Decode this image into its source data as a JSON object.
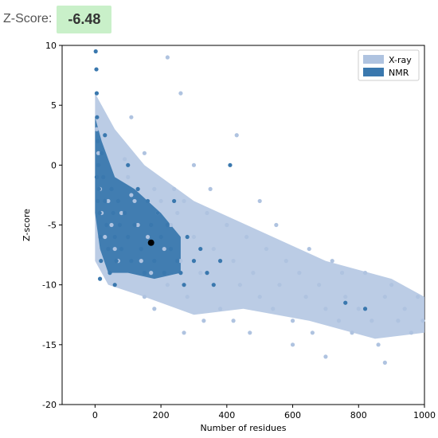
{
  "header": {
    "label": "Z-Score:",
    "value": "-6.48",
    "value_bg": "#c9f0c9"
  },
  "chart_data": {
    "type": "scatter",
    "title": "",
    "xlabel": "Number of residues",
    "ylabel": "Z-score",
    "xlim": [
      -100,
      1000
    ],
    "ylim": [
      -20,
      10
    ],
    "xticks": [
      0,
      200,
      400,
      600,
      800,
      1000
    ],
    "yticks": [
      -20,
      -15,
      -10,
      -5,
      0,
      5,
      10
    ],
    "grid": false,
    "legend_position": "top-right",
    "series": [
      {
        "name": "X-ray",
        "color": "#afc3e0",
        "points": [
          [
            5,
            3
          ],
          [
            10,
            1
          ],
          [
            15,
            -2
          ],
          [
            20,
            -4
          ],
          [
            30,
            -6
          ],
          [
            40,
            -3
          ],
          [
            50,
            -5
          ],
          [
            60,
            -7
          ],
          [
            70,
            -8
          ],
          [
            80,
            -4
          ],
          [
            90,
            0.5
          ],
          [
            100,
            -1
          ],
          [
            110,
            -2.5
          ],
          [
            120,
            -3
          ],
          [
            130,
            -5
          ],
          [
            140,
            -8
          ],
          [
            150,
            1
          ],
          [
            160,
            -6
          ],
          [
            170,
            -9
          ],
          [
            180,
            -2
          ],
          [
            190,
            -4
          ],
          [
            200,
            -3
          ],
          [
            210,
            -7
          ],
          [
            220,
            -10
          ],
          [
            230,
            -5
          ],
          [
            240,
            -2
          ],
          [
            250,
            -4
          ],
          [
            260,
            -8
          ],
          [
            270,
            -3
          ],
          [
            280,
            -11
          ],
          [
            300,
            -6
          ],
          [
            320,
            -9
          ],
          [
            340,
            -4
          ],
          [
            360,
            -7
          ],
          [
            380,
            -12
          ],
          [
            400,
            -5
          ],
          [
            420,
            -8
          ],
          [
            440,
            -10
          ],
          [
            460,
            -6
          ],
          [
            480,
            -9
          ],
          [
            500,
            -11
          ],
          [
            520,
            -7
          ],
          [
            540,
            -12
          ],
          [
            560,
            -10
          ],
          [
            580,
            -8
          ],
          [
            600,
            -13
          ],
          [
            620,
            -9
          ],
          [
            640,
            -11
          ],
          [
            660,
            -14
          ],
          [
            680,
            -10
          ],
          [
            700,
            -12
          ],
          [
            720,
            -8
          ],
          [
            740,
            -13
          ],
          [
            760,
            -11
          ],
          [
            780,
            -14
          ],
          [
            800,
            -12
          ],
          [
            820,
            -9
          ],
          [
            840,
            -13
          ],
          [
            860,
            -15
          ],
          [
            880,
            -11
          ],
          [
            900,
            -10
          ],
          [
            920,
            -13
          ],
          [
            940,
            -12
          ],
          [
            960,
            -14
          ],
          [
            980,
            -11
          ],
          [
            995,
            -13
          ],
          [
            220,
            9
          ],
          [
            430,
            2.5
          ],
          [
            180,
            -12
          ],
          [
            270,
            -14
          ],
          [
            700,
            -16
          ],
          [
            600,
            -15
          ],
          [
            500,
            -3
          ],
          [
            550,
            -5
          ],
          [
            650,
            -7
          ],
          [
            750,
            -9
          ],
          [
            880,
            -16.5
          ],
          [
            420,
            -13
          ],
          [
            350,
            -2
          ],
          [
            300,
            0
          ],
          [
            260,
            6
          ],
          [
            110,
            4
          ],
          [
            150,
            -11
          ],
          [
            330,
            -13
          ],
          [
            470,
            -14
          ]
        ]
      },
      {
        "name": "NMR",
        "color": "#3a78ae",
        "points": [
          [
            2,
            9.5
          ],
          [
            4,
            8
          ],
          [
            5,
            6
          ],
          [
            6,
            4
          ],
          [
            8,
            2
          ],
          [
            10,
            0
          ],
          [
            12,
            -2
          ],
          [
            14,
            -4
          ],
          [
            16,
            -6
          ],
          [
            18,
            -8
          ],
          [
            20,
            1
          ],
          [
            25,
            -1
          ],
          [
            30,
            -3
          ],
          [
            35,
            -5
          ],
          [
            40,
            -7
          ],
          [
            45,
            -9
          ],
          [
            50,
            -2
          ],
          [
            55,
            -4
          ],
          [
            60,
            -6
          ],
          [
            65,
            -8
          ],
          [
            70,
            -3
          ],
          [
            75,
            -5
          ],
          [
            80,
            -7
          ],
          [
            90,
            -4
          ],
          [
            100,
            -6
          ],
          [
            110,
            -8
          ],
          [
            120,
            -5
          ],
          [
            130,
            -2
          ],
          [
            140,
            -7
          ],
          [
            150,
            -9
          ],
          [
            160,
            -3
          ],
          [
            170,
            -5
          ],
          [
            180,
            -8
          ],
          [
            190,
            -4
          ],
          [
            200,
            -6
          ],
          [
            210,
            -9
          ],
          [
            220,
            -5
          ],
          [
            230,
            -7
          ],
          [
            240,
            -3
          ],
          [
            250,
            -8
          ],
          [
            260,
            -9
          ],
          [
            270,
            -10
          ],
          [
            280,
            -6
          ],
          [
            300,
            -8
          ],
          [
            320,
            -7
          ],
          [
            340,
            -9
          ],
          [
            360,
            -10
          ],
          [
            380,
            -8
          ],
          [
            410,
            0
          ],
          [
            760,
            -11.5
          ],
          [
            820,
            -12
          ],
          [
            30,
            2.5
          ],
          [
            60,
            -10
          ],
          [
            15,
            -9.5
          ],
          [
            100,
            0
          ],
          [
            5,
            -1
          ],
          [
            8,
            -3
          ]
        ]
      }
    ],
    "highlight": {
      "x": 170,
      "y": -6.48,
      "color": "#000000"
    }
  }
}
